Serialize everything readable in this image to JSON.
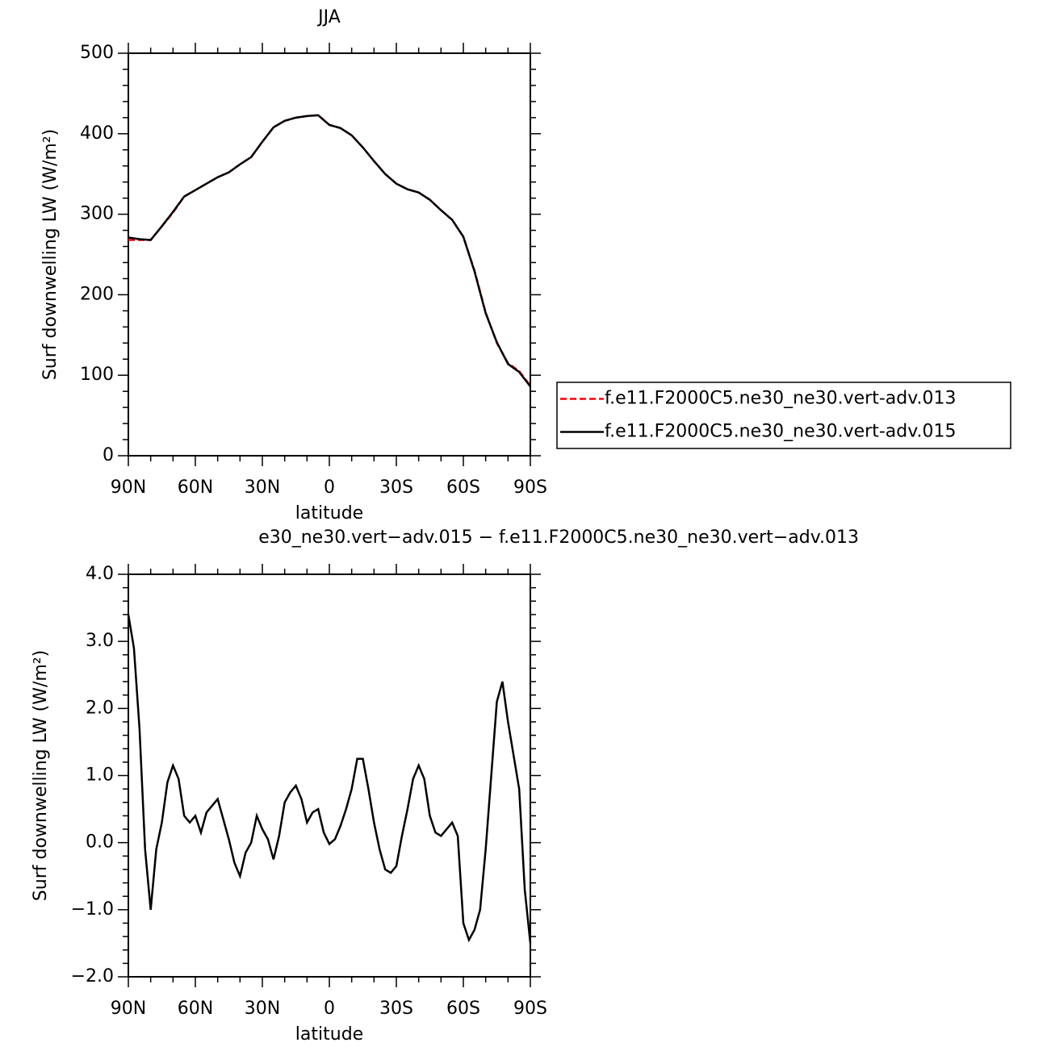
{
  "chart_data": [
    {
      "type": "line",
      "title": "JJA",
      "xlabel": "latitude",
      "ylabel": "Surf downwelling LW (W/m²)",
      "x": [
        90,
        85,
        80,
        75,
        70,
        65,
        60,
        55,
        50,
        45,
        40,
        35,
        30,
        25,
        20,
        15,
        10,
        5,
        0,
        -5,
        -10,
        -15,
        -20,
        -25,
        -30,
        -35,
        -40,
        -45,
        -50,
        -55,
        -60,
        -65,
        -70,
        -75,
        -80,
        -85,
        -90
      ],
      "xlim": [
        90,
        -90
      ],
      "xticks": [
        {
          "value": 90,
          "label": "90N"
        },
        {
          "value": 60,
          "label": "60N"
        },
        {
          "value": 30,
          "label": "30N"
        },
        0,
        {
          "value": -30,
          "label": "30S"
        },
        {
          "value": -60,
          "label": "60S"
        },
        {
          "value": -90,
          "label": "90S"
        }
      ],
      "ylim": [
        0,
        500
      ],
      "yticks": [
        0,
        100,
        200,
        300,
        400,
        500
      ],
      "legend": "right",
      "series": [
        {
          "name": "f.e11.F2000C5.ne30_ne30.vert-adv.013",
          "color": "#ff0000",
          "linestyle": "dashed",
          "values": [
            268,
            268,
            268,
            285,
            302,
            322,
            330,
            338,
            346,
            352,
            362,
            371,
            390,
            408,
            416,
            420,
            422,
            423,
            411,
            407,
            398,
            383,
            366,
            350,
            338,
            331,
            327,
            318,
            305,
            293,
            272,
            230,
            178,
            140,
            115,
            105,
            87
          ]
        },
        {
          "name": "f.e11.F2000C5.ne30_ne30.vert-adv.015",
          "color": "#000000",
          "linestyle": "solid",
          "values": [
            271,
            269,
            268,
            285,
            303,
            322,
            330,
            338,
            346,
            352,
            362,
            371,
            390,
            408,
            416,
            420,
            422,
            423,
            411,
            407,
            398,
            383,
            366,
            350,
            338,
            331,
            327,
            318,
            305,
            293,
            272,
            229,
            177,
            141,
            114,
            104,
            86
          ]
        }
      ]
    },
    {
      "type": "line",
      "title": "e30_ne30.vert−adv.015 − f.e11.F2000C5.ne30_ne30.vert−adv.013",
      "xlabel": "latitude",
      "ylabel": "Surf downwelling LW (W/m²)",
      "x": [
        90,
        87.5,
        85,
        82.5,
        80,
        77.5,
        75,
        72.5,
        70,
        67.5,
        65,
        62.5,
        60,
        57.5,
        55,
        52.5,
        50,
        47.5,
        45,
        42.5,
        40,
        37.5,
        35,
        32.5,
        30,
        27.5,
        25,
        22.5,
        20,
        17.5,
        15,
        12.5,
        10,
        7.5,
        5,
        2.5,
        0,
        -2.5,
        -5,
        -7.5,
        -10,
        -12.5,
        -15,
        -17.5,
        -20,
        -22.5,
        -25,
        -27.5,
        -30,
        -32.5,
        -35,
        -37.5,
        -40,
        -42.5,
        -45,
        -47.5,
        -50,
        -52.5,
        -55,
        -57.5,
        -60,
        -62.5,
        -65,
        -67.5,
        -70,
        -72.5,
        -75,
        -77.5,
        -80,
        -82.5,
        -85,
        -87.5,
        -90
      ],
      "xlim": [
        90,
        -90
      ],
      "xticks": [
        {
          "value": 90,
          "label": "90N"
        },
        {
          "value": 60,
          "label": "60N"
        },
        {
          "value": 30,
          "label": "30N"
        },
        0,
        {
          "value": -30,
          "label": "30S"
        },
        {
          "value": -60,
          "label": "60S"
        },
        {
          "value": -90,
          "label": "90S"
        }
      ],
      "ylim": [
        -2,
        4
      ],
      "yticks": [
        {
          "value": -2,
          "label": "−2.0"
        },
        {
          "value": -1,
          "label": "−1.0"
        },
        {
          "value": 0,
          "label": "0.0"
        },
        {
          "value": 1,
          "label": "1.0"
        },
        {
          "value": 2,
          "label": "2.0"
        },
        {
          "value": 3,
          "label": "3.0"
        },
        {
          "value": 4,
          "label": "4.0"
        }
      ],
      "series": [
        {
          "color": "#000000",
          "linestyle": "solid",
          "values": [
            3.4,
            2.9,
            1.7,
            -0.1,
            -1.0,
            -0.1,
            0.3,
            0.9,
            1.15,
            0.95,
            0.4,
            0.3,
            0.4,
            0.15,
            0.45,
            0.55,
            0.65,
            0.35,
            0.05,
            -0.3,
            -0.5,
            -0.15,
            0.0,
            0.4,
            0.2,
            0.05,
            -0.25,
            0.1,
            0.6,
            0.75,
            0.85,
            0.65,
            0.3,
            0.45,
            0.5,
            0.15,
            -0.02,
            0.05,
            0.25,
            0.5,
            0.8,
            1.25,
            1.25,
            0.8,
            0.3,
            -0.1,
            -0.4,
            -0.45,
            -0.35,
            0.1,
            0.5,
            0.95,
            1.15,
            0.95,
            0.4,
            0.15,
            0.1,
            0.2,
            0.3,
            0.1,
            -1.2,
            -1.45,
            -1.3,
            -1.0,
            -0.1,
            1.0,
            2.1,
            2.4,
            1.8,
            1.3,
            0.8,
            -0.7,
            -1.5
          ]
        }
      ]
    }
  ]
}
